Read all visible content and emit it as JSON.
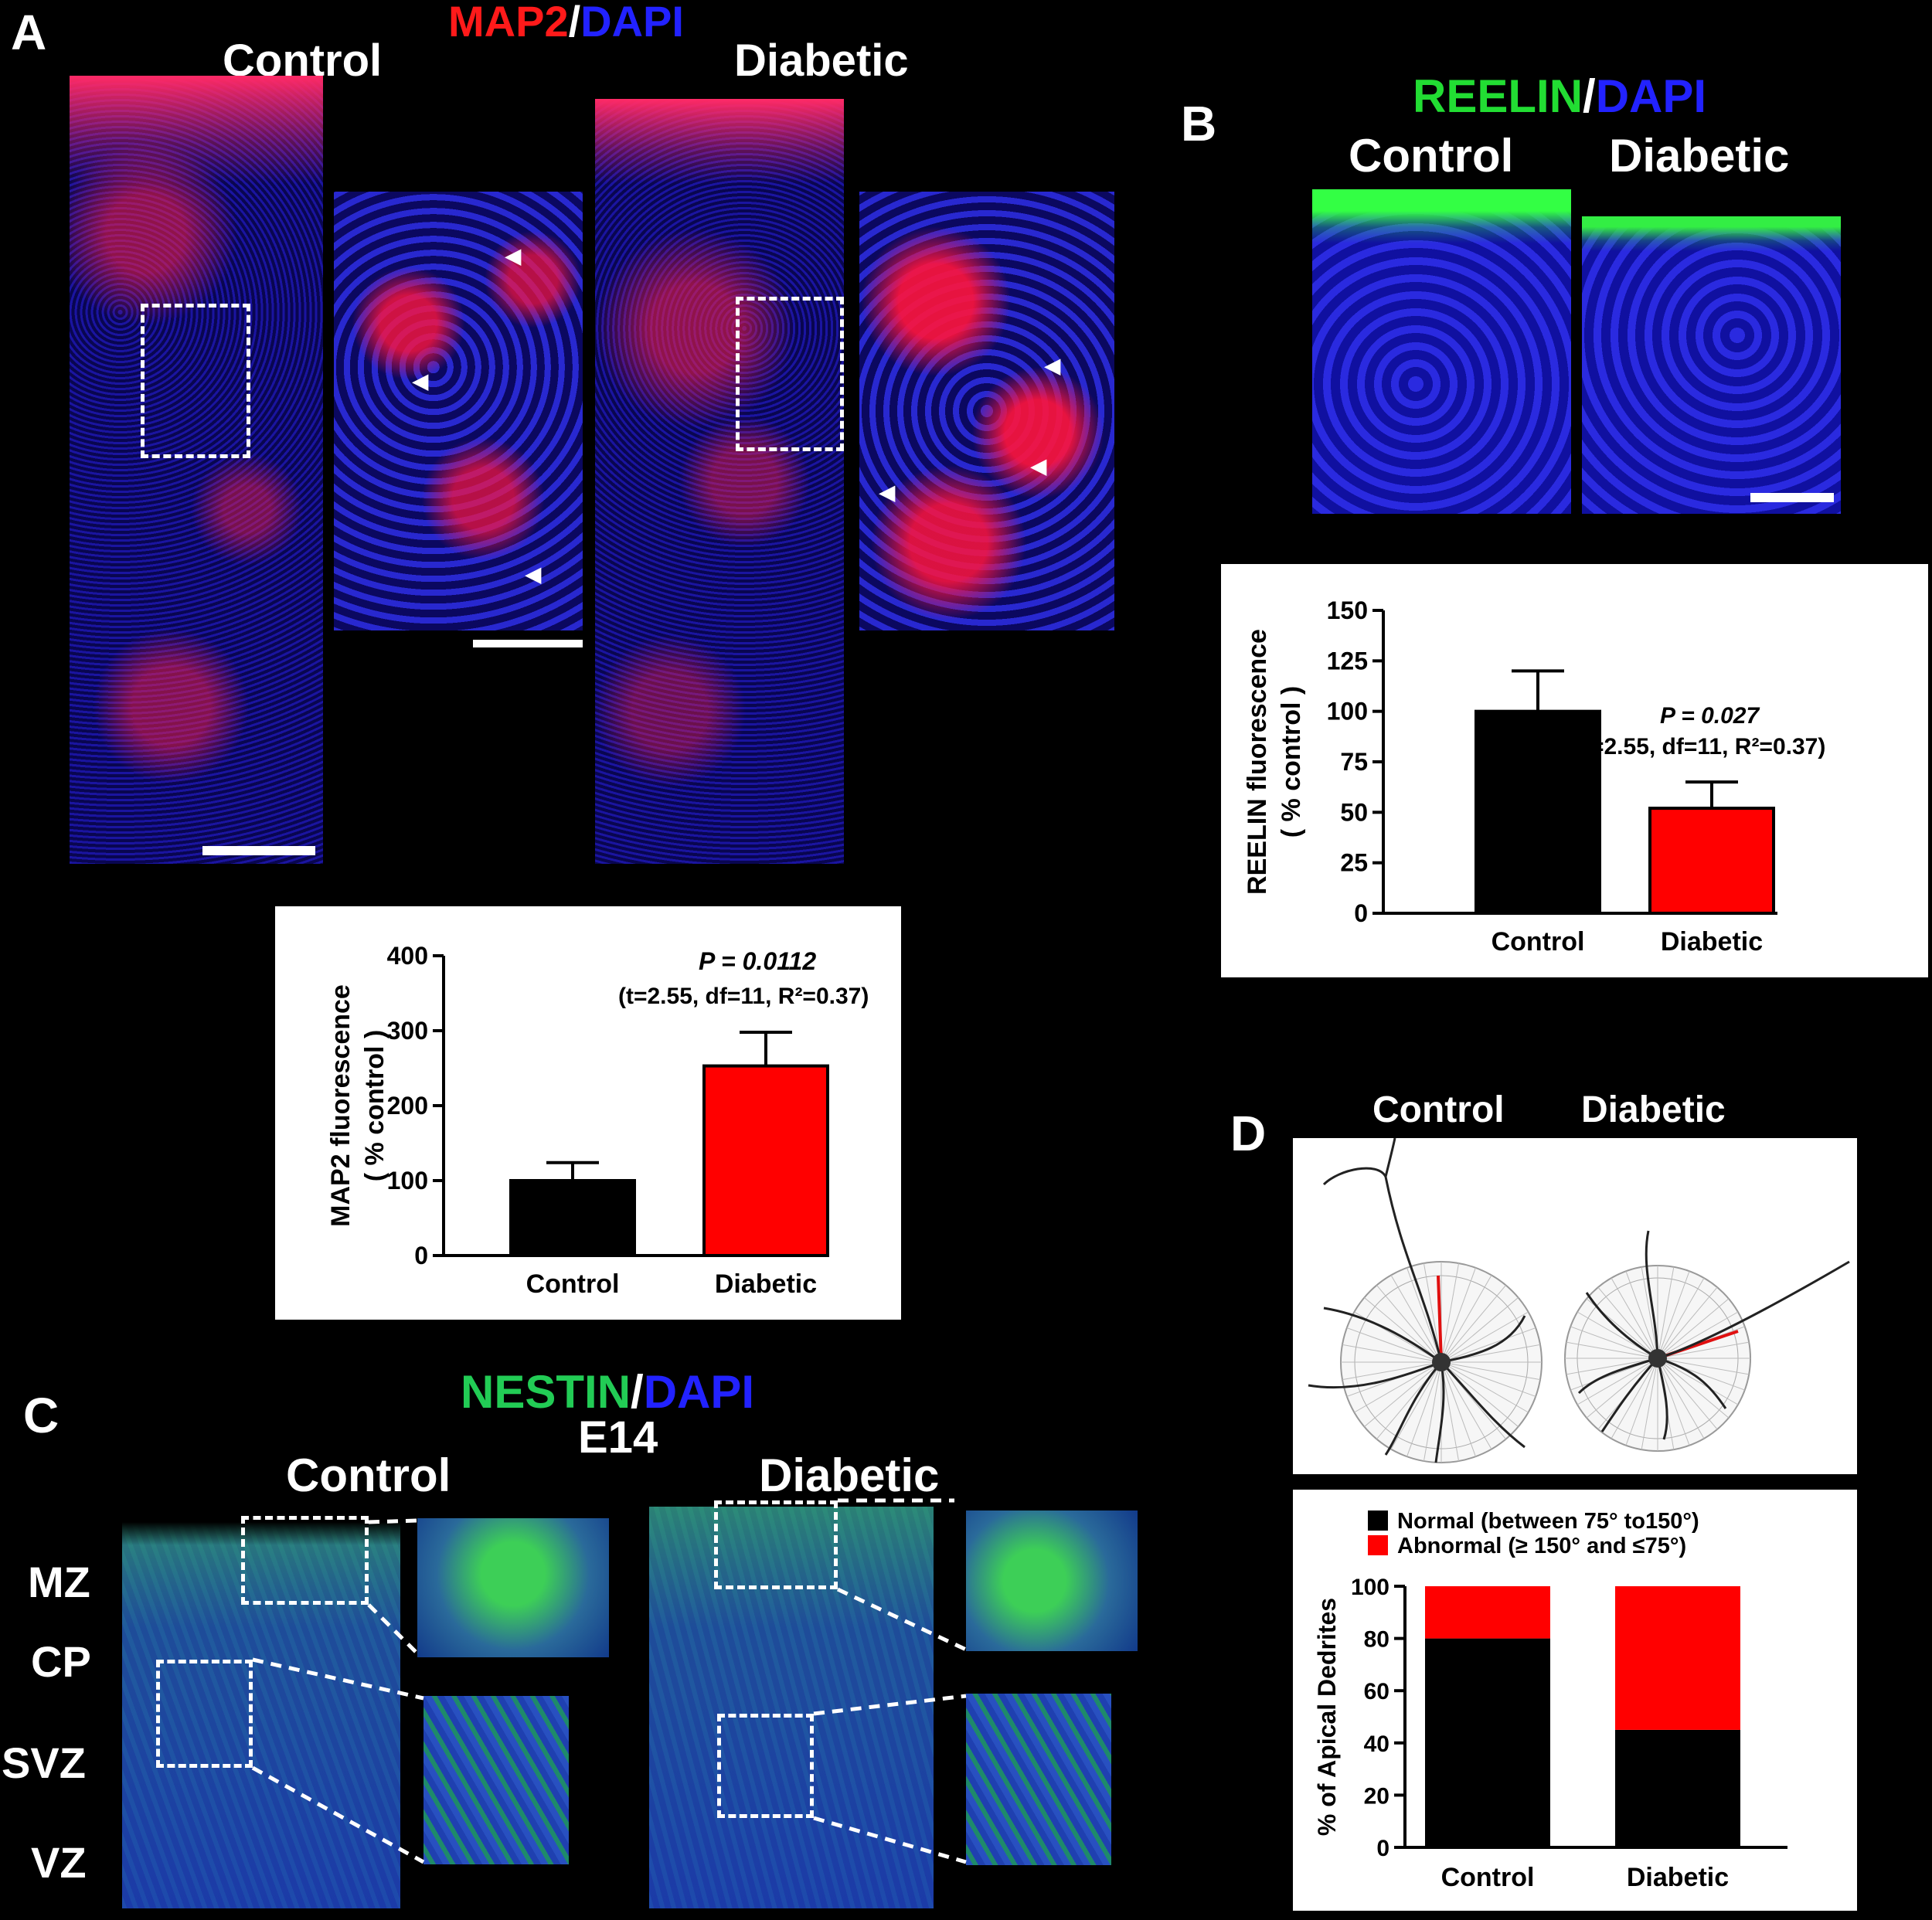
{
  "colors": {
    "map2": "#ff1a1a",
    "dapi": "#2222ff",
    "green": "#22dd33",
    "nestin": "#22cc55",
    "bar_control": "#000000",
    "bar_diabetic": "#ff0000",
    "abnormal": "#ff0000",
    "normal": "#000000"
  },
  "panelA": {
    "letter": "A",
    "stain_a": "MAP2",
    "stain_slash": "/",
    "stain_b": "DAPI",
    "control": "Control",
    "diabetic": "Diabetic",
    "chart": {
      "ylabel_1": "MAP2 fluorescence",
      "ylabel_2": "( % control )",
      "p_value": "P = 0.0112",
      "stats": "(t=2.55, df=11, R²=0.37)"
    }
  },
  "panelB": {
    "letter": "B",
    "stain_a": "REELIN",
    "stain_slash": "/",
    "stain_b": "DAPI",
    "control": "Control",
    "diabetic": "Diabetic",
    "chart": {
      "ylabel_1": "REELIN fluorescence",
      "ylabel_2": "( % control )",
      "p_value": "P = 0.027",
      "stats": "(t=2.55, df=11, R²=0.37)"
    }
  },
  "panelC": {
    "letter": "C",
    "stain_a": "NESTIN",
    "stain_slash": "/",
    "stain_b": "DAPI",
    "age": "E14",
    "control": "Control",
    "diabetic": "Diabetic",
    "zones": [
      "MZ",
      "CP",
      "SVZ",
      "VZ"
    ]
  },
  "panelD": {
    "letter": "D",
    "control": "Control",
    "diabetic": "Diabetic",
    "legend_normal": "Normal (between 75° to150°)",
    "legend_abnormal": "Abnormal (≥ 150° and ≤75°)",
    "ylabel": "% of Apical Dedrites"
  },
  "chart_data": [
    {
      "type": "bar",
      "title": "",
      "categories": [
        "Control",
        "Diabetic"
      ],
      "values": [
        100,
        253
      ],
      "errors": [
        24,
        45
      ],
      "ylabel": "MAP2 fluorescence ( % control )",
      "ylim": [
        0,
        400
      ],
      "yticks": [
        0,
        100,
        200,
        300,
        400
      ],
      "annotation": "P = 0.0112 (t=2.55, df=11, R²=0.37)",
      "grid": false
    },
    {
      "type": "bar",
      "title": "",
      "categories": [
        "Control",
        "Diabetic"
      ],
      "values": [
        100,
        52
      ],
      "errors": [
        20,
        13
      ],
      "ylabel": "REELIN fluorescence ( % control )",
      "ylim": [
        0,
        150
      ],
      "yticks": [
        0,
        25,
        50,
        75,
        100,
        125,
        150
      ],
      "annotation": "P = 0.027 (t=2.55, df=11, R²=0.37)",
      "grid": false
    },
    {
      "type": "bar",
      "stacked": true,
      "title": "",
      "categories": [
        "Control",
        "Diabetic"
      ],
      "series": [
        {
          "name": "Normal (between 75° to150°)",
          "values": [
            80,
            45
          ]
        },
        {
          "name": "Abnormal (≥ 150° and ≤75°)",
          "values": [
            20,
            55
          ]
        }
      ],
      "ylabel": "% of Apical Dedrites",
      "ylim": [
        0,
        100
      ],
      "yticks": [
        0,
        20,
        40,
        60,
        80,
        100
      ],
      "legend": "top",
      "grid": false
    }
  ]
}
